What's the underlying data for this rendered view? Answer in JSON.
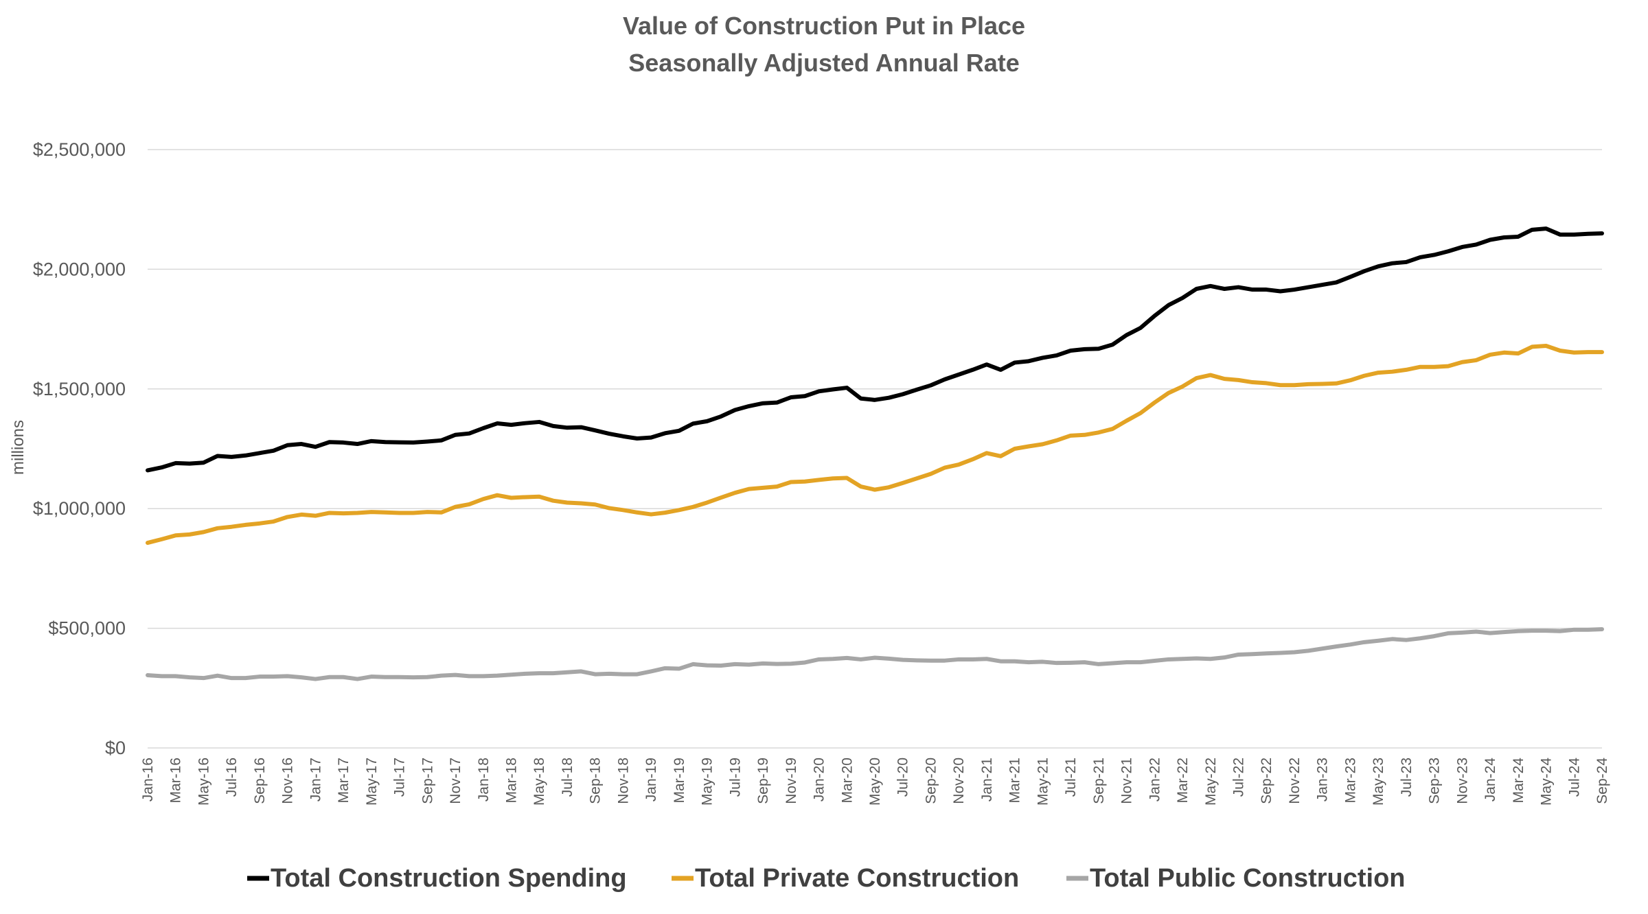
{
  "chart_data": {
    "type": "line",
    "title": "Value of Construction Put in Place",
    "subtitle": "Seasonally Adjusted Annual Rate",
    "ylabel": "millions",
    "xlabel": "",
    "ylim": [
      0,
      2500000
    ],
    "y_ticks": [
      0,
      500000,
      1000000,
      1500000,
      2000000,
      2500000
    ],
    "y_tick_labels": [
      "$0",
      "$500,000",
      "$1,000,000",
      "$1,500,000",
      "$2,000,000",
      "$2,500,000"
    ],
    "x_tick_labels": [
      "Jan-16",
      "Mar-16",
      "May-16",
      "Jul-16",
      "Sep-16",
      "Nov-16",
      "Jan-17",
      "Mar-17",
      "May-17",
      "Jul-17",
      "Sep-17",
      "Nov-17",
      "Jan-18",
      "Mar-18",
      "May-18",
      "Jul-18",
      "Sep-18",
      "Nov-18",
      "Jan-19",
      "Mar-19",
      "May-19",
      "Jul-19",
      "Sep-19",
      "Nov-19",
      "Jan-20",
      "Mar-20",
      "May-20",
      "Jul-20",
      "Sep-20",
      "Nov-20",
      "Jan-21",
      "Mar-21",
      "May-21",
      "Jul-21",
      "Sep-21",
      "Nov-21",
      "Jan-22",
      "Mar-22",
      "May-22",
      "Jul-22",
      "Sep-22",
      "Nov-22",
      "Jan-23",
      "Mar-23",
      "May-23",
      "Jul-23",
      "Sep-23",
      "Nov-23",
      "Jan-24",
      "Mar-24",
      "May-24",
      "Jul-24",
      "Sep-24"
    ],
    "x_start": "Jan-16",
    "x_end": "Sep-24",
    "grid": true,
    "legend_position": "bottom",
    "series": [
      {
        "name": "Total Construction Spending",
        "color": "#000000",
        "values": [
          1160000,
          1172000,
          1190000,
          1188000,
          1192000,
          1220000,
          1216000,
          1222000,
          1232000,
          1242000,
          1265000,
          1270000,
          1258000,
          1278000,
          1276000,
          1270000,
          1282000,
          1278000,
          1277000,
          1276000,
          1280000,
          1285000,
          1308000,
          1314000,
          1336000,
          1356000,
          1350000,
          1357000,
          1362000,
          1345000,
          1338000,
          1340000,
          1327000,
          1313000,
          1302000,
          1293000,
          1297000,
          1315000,
          1325000,
          1355000,
          1365000,
          1385000,
          1412000,
          1428000,
          1440000,
          1443000,
          1465000,
          1470000,
          1490000,
          1498000,
          1505000,
          1460000,
          1454000,
          1463000,
          1478000,
          1497000,
          1515000,
          1540000,
          1560000,
          1580000,
          1602000,
          1580000,
          1610000,
          1616000,
          1630000,
          1640000,
          1660000,
          1666000,
          1668000,
          1685000,
          1725000,
          1755000,
          1805000,
          1850000,
          1880000,
          1918000,
          1930000,
          1918000,
          1925000,
          1915000,
          1915000,
          1908000,
          1915000,
          1925000,
          1935000,
          1945000,
          1968000,
          1992000,
          2012000,
          2025000,
          2030000,
          2050000,
          2060000,
          2075000,
          2093000,
          2103000,
          2123000,
          2133000,
          2136000,
          2165000,
          2170000,
          2145000,
          2145000,
          2148000,
          2150000
        ]
      },
      {
        "name": "Total Private Construction",
        "color": "#E3A324",
        "values": [
          857000,
          872000,
          888000,
          892000,
          902000,
          918000,
          924000,
          932000,
          938000,
          946000,
          965000,
          975000,
          970000,
          982000,
          980000,
          982000,
          986000,
          984000,
          982000,
          982000,
          986000,
          984000,
          1007000,
          1018000,
          1040000,
          1056000,
          1045000,
          1048000,
          1050000,
          1033000,
          1025000,
          1022000,
          1017000,
          1002000,
          994000,
          984000,
          976000,
          983000,
          994000,
          1007000,
          1025000,
          1046000,
          1066000,
          1082000,
          1087000,
          1092000,
          1111000,
          1113000,
          1120000,
          1126000,
          1128000,
          1092000,
          1079000,
          1089000,
          1107000,
          1126000,
          1145000,
          1171000,
          1184000,
          1206000,
          1232000,
          1219000,
          1250000,
          1260000,
          1269000,
          1285000,
          1305000,
          1308000,
          1318000,
          1333000,
          1367000,
          1399000,
          1443000,
          1483000,
          1510000,
          1545000,
          1558000,
          1542000,
          1537000,
          1528000,
          1524000,
          1516000,
          1516000,
          1520000,
          1521000,
          1523000,
          1536000,
          1555000,
          1568000,
          1572000,
          1580000,
          1592000,
          1592000,
          1595000,
          1612000,
          1620000,
          1643000,
          1652000,
          1648000,
          1676000,
          1680000,
          1660000,
          1652000,
          1654000,
          1654000
        ]
      },
      {
        "name": "Total Public Construction",
        "color": "#A6A6A6",
        "values": [
          304000,
          300000,
          300000,
          295000,
          292000,
          302000,
          292000,
          292000,
          298000,
          298000,
          300000,
          295000,
          288000,
          296000,
          296000,
          288000,
          298000,
          296000,
          296000,
          295000,
          296000,
          302000,
          305000,
          300000,
          300000,
          302000,
          306000,
          310000,
          312000,
          312000,
          316000,
          320000,
          308000,
          310000,
          308000,
          308000,
          320000,
          333000,
          331000,
          350000,
          345000,
          344000,
          350000,
          348000,
          353000,
          351000,
          352000,
          357000,
          370000,
          372000,
          376000,
          370000,
          377000,
          373000,
          368000,
          366000,
          365000,
          365000,
          370000,
          370000,
          372000,
          362000,
          362000,
          358000,
          360000,
          355000,
          356000,
          358000,
          350000,
          354000,
          358000,
          358000,
          364000,
          370000,
          372000,
          374000,
          372000,
          378000,
          390000,
          392000,
          395000,
          397000,
          400000,
          406000,
          415000,
          424000,
          432000,
          442000,
          448000,
          455000,
          451000,
          458000,
          467000,
          479000,
          482000,
          486000,
          480000,
          484000,
          488000,
          490000,
          490000,
          488000,
          494000,
          494000,
          496000
        ]
      }
    ]
  }
}
